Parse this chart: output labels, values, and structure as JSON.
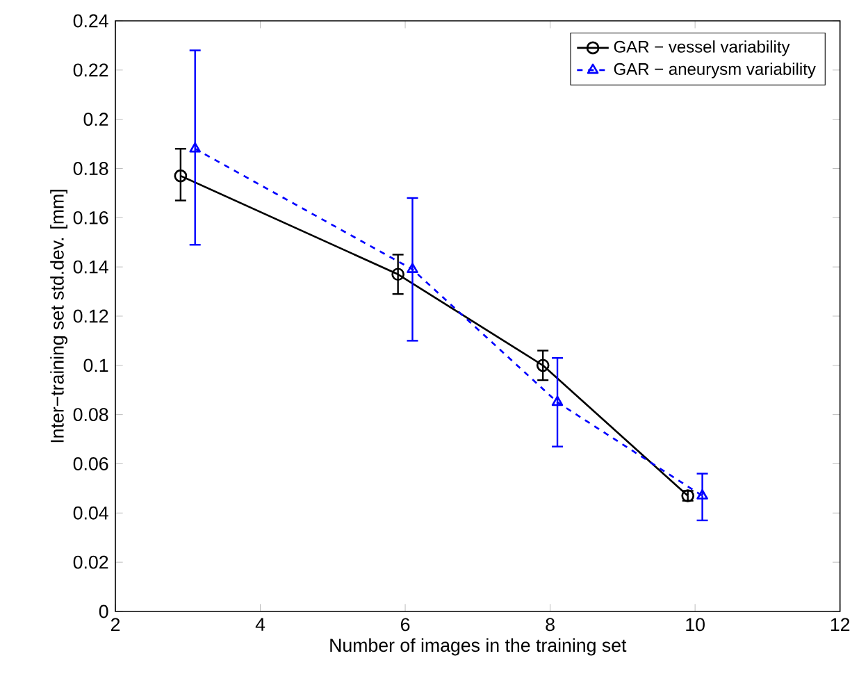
{
  "chart_data": {
    "type": "line",
    "xlabel": "Number of images in the training set",
    "ylabel": "Inter−training set std.dev. [mm]",
    "xlim": [
      2,
      12
    ],
    "xticks": [
      2,
      4,
      6,
      8,
      10,
      12
    ],
    "ylim": [
      0,
      0.24
    ],
    "yticks": [
      0,
      0.02,
      0.04,
      0.06,
      0.08,
      0.1,
      0.12,
      0.14,
      0.16,
      0.18,
      0.2,
      0.22,
      0.24
    ],
    "grid": false,
    "legend": "top right",
    "series": [
      {
        "name": "GAR − vessel variability",
        "color": "#000000",
        "marker": "circle",
        "line_style": "solid",
        "x": [
          2.9,
          5.9,
          7.9,
          9.9
        ],
        "values": [
          0.177,
          0.137,
          0.1,
          0.047
        ],
        "errors": [
          [
            0.167,
            0.188
          ],
          [
            0.129,
            0.145
          ],
          [
            0.094,
            0.106
          ],
          [
            0.045,
            0.049
          ]
        ]
      },
      {
        "name": "GAR − aneurysm variability",
        "color": "#0000ff",
        "marker": "triangle",
        "line_style": "dashed",
        "x": [
          3.1,
          6.1,
          8.1,
          10.1
        ],
        "values": [
          0.188,
          0.139,
          0.085,
          0.047
        ],
        "errors": [
          [
            0.149,
            0.228
          ],
          [
            0.11,
            0.168
          ],
          [
            0.067,
            0.103
          ],
          [
            0.037,
            0.056
          ]
        ]
      }
    ]
  }
}
